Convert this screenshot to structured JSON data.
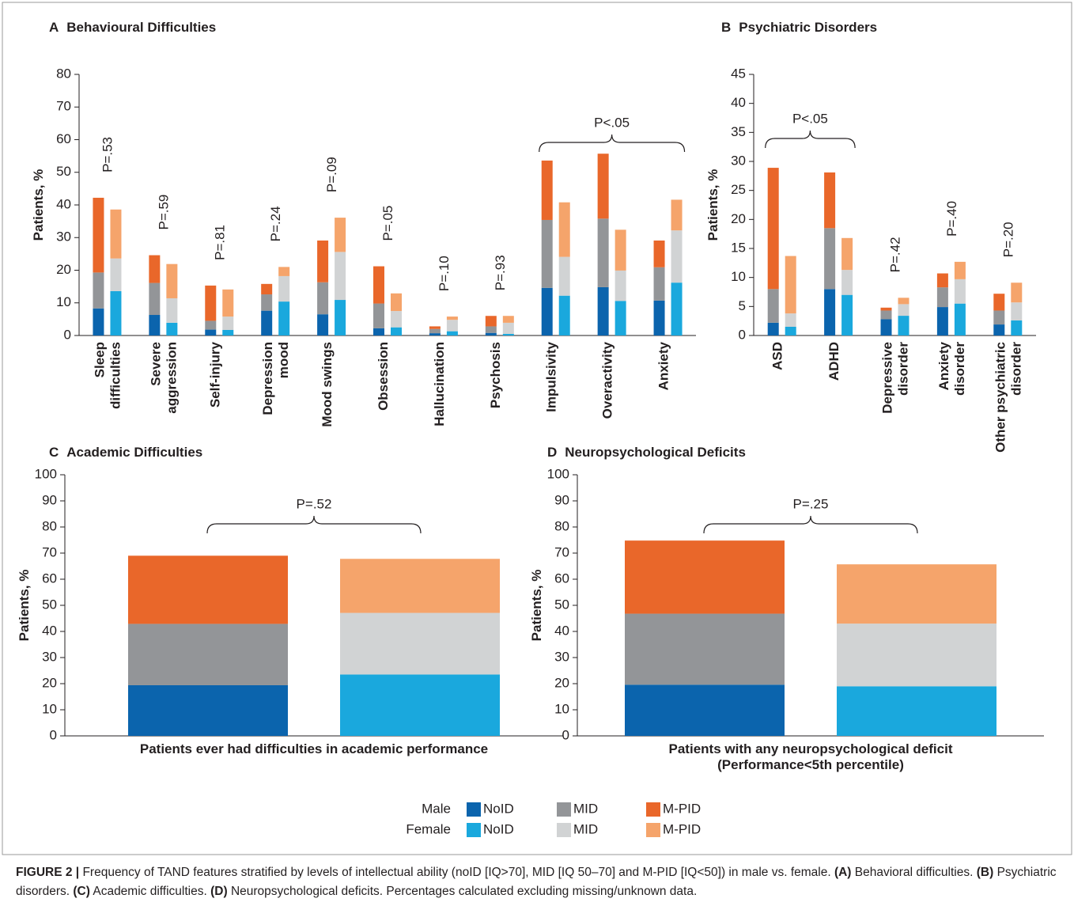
{
  "chart_data": [
    {
      "type": "bar",
      "label": "A",
      "title": "Behavioural  Difficulties",
      "y_label": "Patients, %",
      "ylim": [
        0,
        80
      ],
      "yticks": [
        0,
        10,
        20,
        30,
        40,
        50,
        60,
        70,
        80
      ],
      "categories": [
        "Sleep\ndifficulties",
        "Severe\naggression",
        "Self-injury",
        "Depression\nmood",
        "Mood swings",
        "Obsession",
        "Hallucination",
        "Psychosis",
        "Impulsivity",
        "Overactivity",
        "Anxiety"
      ],
      "series": [
        {
          "values": [
            8.3,
            6.3,
            1.8,
            7.6,
            6.5,
            2.2,
            0.7,
            0.8,
            14.6,
            14.8,
            10.7
          ]
        },
        {
          "values": [
            11.0,
            9.8,
            2.7,
            5.0,
            9.8,
            7.6,
            1.3,
            2.0,
            20.8,
            21.0,
            10.2
          ]
        },
        {
          "values": [
            22.9,
            8.5,
            10.8,
            3.2,
            12.8,
            11.4,
            0.8,
            3.2,
            18.2,
            19.9,
            8.2
          ]
        },
        {
          "values": [
            13.6,
            3.9,
            1.7,
            10.4,
            10.9,
            2.5,
            1.3,
            0.5,
            12.2,
            10.6,
            16.2
          ]
        },
        {
          "values": [
            10.0,
            7.5,
            4.1,
            7.8,
            14.7,
            5.0,
            3.5,
            3.4,
            11.9,
            9.3,
            16.0
          ]
        },
        {
          "values": [
            15.0,
            10.5,
            8.3,
            2.8,
            10.5,
            5.4,
            1.0,
            2.1,
            16.7,
            12.5,
            9.4
          ]
        }
      ],
      "p_values": [
        "P=.53",
        "P=.59",
        "P=.81",
        "P=.24",
        "P=.09",
        "P=.05",
        "P=.10",
        "P=.93",
        null,
        null,
        null
      ],
      "bracket": {
        "label": "P<.05",
        "from": 8,
        "to": 10
      }
    },
    {
      "type": "bar",
      "label": "B",
      "title": "Psychiatric Disorders",
      "y_label": "Patients, %",
      "ylim": [
        0,
        45
      ],
      "yticks": [
        0,
        5,
        10,
        15,
        20,
        25,
        30,
        35,
        40,
        45
      ],
      "categories": [
        "ASD",
        "ADHD",
        "Depressive\ndisorder",
        "Anxiety\ndisorder",
        "Other psychiatric\ndisorder"
      ],
      "series": [
        {
          "values": [
            2.2,
            8.0,
            2.8,
            4.9,
            1.9
          ]
        },
        {
          "values": [
            5.8,
            10.5,
            1.5,
            3.4,
            2.4
          ]
        },
        {
          "values": [
            20.9,
            9.6,
            0.5,
            2.4,
            2.9
          ]
        },
        {
          "values": [
            1.5,
            7.0,
            3.4,
            5.5,
            2.6
          ]
        },
        {
          "values": [
            2.3,
            4.3,
            2.0,
            4.2,
            3.1
          ]
        },
        {
          "values": [
            9.9,
            5.5,
            1.1,
            3.0,
            3.4
          ]
        }
      ],
      "p_values": [
        null,
        null,
        "P=.42",
        "P=.40",
        "P=.20"
      ],
      "bracket": {
        "label": "P<.05",
        "from": 0,
        "to": 1
      }
    },
    {
      "type": "bar",
      "label": "C",
      "title": "Academic Difficulties",
      "y_label": "Patients, %",
      "ylim": [
        0,
        100
      ],
      "yticks": [
        0,
        10,
        20,
        30,
        40,
        50,
        60,
        70,
        80,
        90,
        100
      ],
      "categories": [
        "Patients ever had difficulties in academic performance"
      ],
      "series": [
        {
          "values": [
            19.4
          ]
        },
        {
          "values": [
            23.5
          ]
        },
        {
          "values": [
            26.1
          ]
        },
        {
          "values": [
            23.5
          ]
        },
        {
          "values": [
            23.6
          ]
        },
        {
          "values": [
            20.7
          ]
        }
      ],
      "bracket": {
        "label": "P=.52",
        "from": 0,
        "to": 0
      }
    },
    {
      "type": "bar",
      "label": "D",
      "title": "Neuropsychological Deficits",
      "y_label": "Patients, %",
      "ylim": [
        0,
        100
      ],
      "yticks": [
        0,
        10,
        20,
        30,
        40,
        50,
        60,
        70,
        80,
        90,
        100
      ],
      "categories": [
        "Patients with any neuropsychological deficit\n(Performance<5th percentile)"
      ],
      "series": [
        {
          "values": [
            19.6
          ]
        },
        {
          "values": [
            27.2
          ]
        },
        {
          "values": [
            28.0
          ]
        },
        {
          "values": [
            19.0
          ]
        },
        {
          "values": [
            24.0
          ]
        },
        {
          "values": [
            22.7
          ]
        }
      ],
      "bracket": {
        "label": "P=.25",
        "from": 0,
        "to": 0
      }
    }
  ],
  "legend": [
    {
      "label": "Male",
      "items": [
        {
          "name": "NoID",
          "color": "#0b64ad"
        },
        {
          "name": "MID",
          "color": "#939598"
        },
        {
          "name": "M-PID",
          "color": "#e9672a"
        }
      ]
    },
    {
      "label": "Female",
      "items": [
        {
          "name": "NoID",
          "color": "#1aa8dd"
        },
        {
          "name": "MID",
          "color": "#d1d3d4"
        },
        {
          "name": "M-PID",
          "color": "#f5a46b"
        }
      ]
    }
  ],
  "caption": [
    {
      "text": "FIGURE 2 |",
      "bold": true
    },
    {
      "text": " Frequency of TAND features stratified by levels of intellectual ability (noID [IQ>70], MID [IQ 50–70] and M-PID [IQ<50]) in male vs. female. "
    },
    {
      "text": "(A)",
      "bold": true
    },
    {
      "text": " Behavioral difficulties. "
    },
    {
      "text": "(B)",
      "bold": true
    },
    {
      "text": " Psychiatric disorders. "
    },
    {
      "text": "(C)",
      "bold": true
    },
    {
      "text": " Academic difficulties. "
    },
    {
      "text": "(D)",
      "bold": true
    },
    {
      "text": " Neuropsychological deficits. Percentages calculated excluding missing/unknown data."
    }
  ]
}
